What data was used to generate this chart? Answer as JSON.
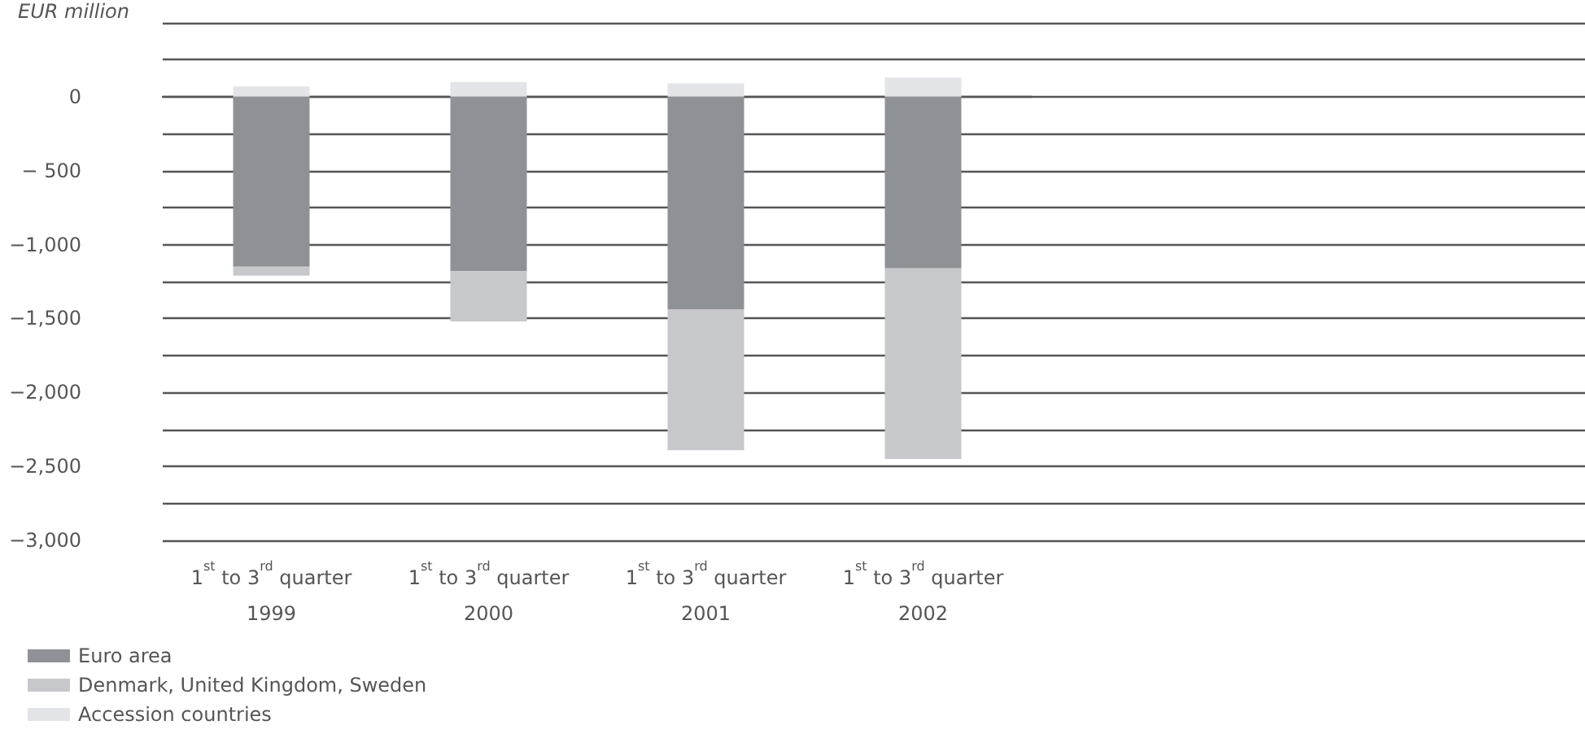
{
  "chart_data": {
    "type": "bar",
    "ylabel": "EUR million",
    "stacked": true,
    "categories": [
      "1$^{st}$ to 3$^{rd}$ quarter\n1999",
      "1$^{st}$ to 3$^{rd}$ quarter\n2000",
      "1$^{st}$ to 3$^{rd}$ quarter\n2001",
      "1$^{st}$ to 3$^{rd}$ quarter\n2002"
    ],
    "series": [
      {
        "name": "Euro area",
        "color": "#8e9195",
        "values": [
          -1150,
          -1180,
          -1440,
          -1160
        ]
      },
      {
        "name": "Denmark, United Kingdom, Sweden",
        "color": "#c7c8cc",
        "values": [
          -60,
          -340,
          -950,
          -1290
        ]
      },
      {
        "name": "Accession countries",
        "color": "#e3e4e8",
        "values": [
          70,
          100,
          90,
          130
        ]
      }
    ],
    "ylim": [
      -3000,
      500
    ],
    "yticks": [
      {
        "value": -3000,
        "label": "−3,000"
      },
      {
        "value": -2750,
        "label": null
      },
      {
        "value": -2500,
        "label": "−2,500"
      },
      {
        "value": -2250,
        "label": null
      },
      {
        "value": -2000,
        "label": "−2,000"
      },
      {
        "value": -1750,
        "label": null
      },
      {
        "value": -1500,
        "label": "−1,500"
      },
      {
        "value": -1250,
        "label": null
      },
      {
        "value": -1000,
        "label": "−1,000"
      },
      {
        "value": -750,
        "label": null
      },
      {
        "value": -500,
        "label": "− 500"
      },
      {
        "value": -250,
        "label": null
      },
      0,
      {
        "value": 250,
        "label": null
      },
      {
        "value": 500,
        "label": null
      }
    ],
    "grid": "y",
    "legend": "bottom left"
  }
}
